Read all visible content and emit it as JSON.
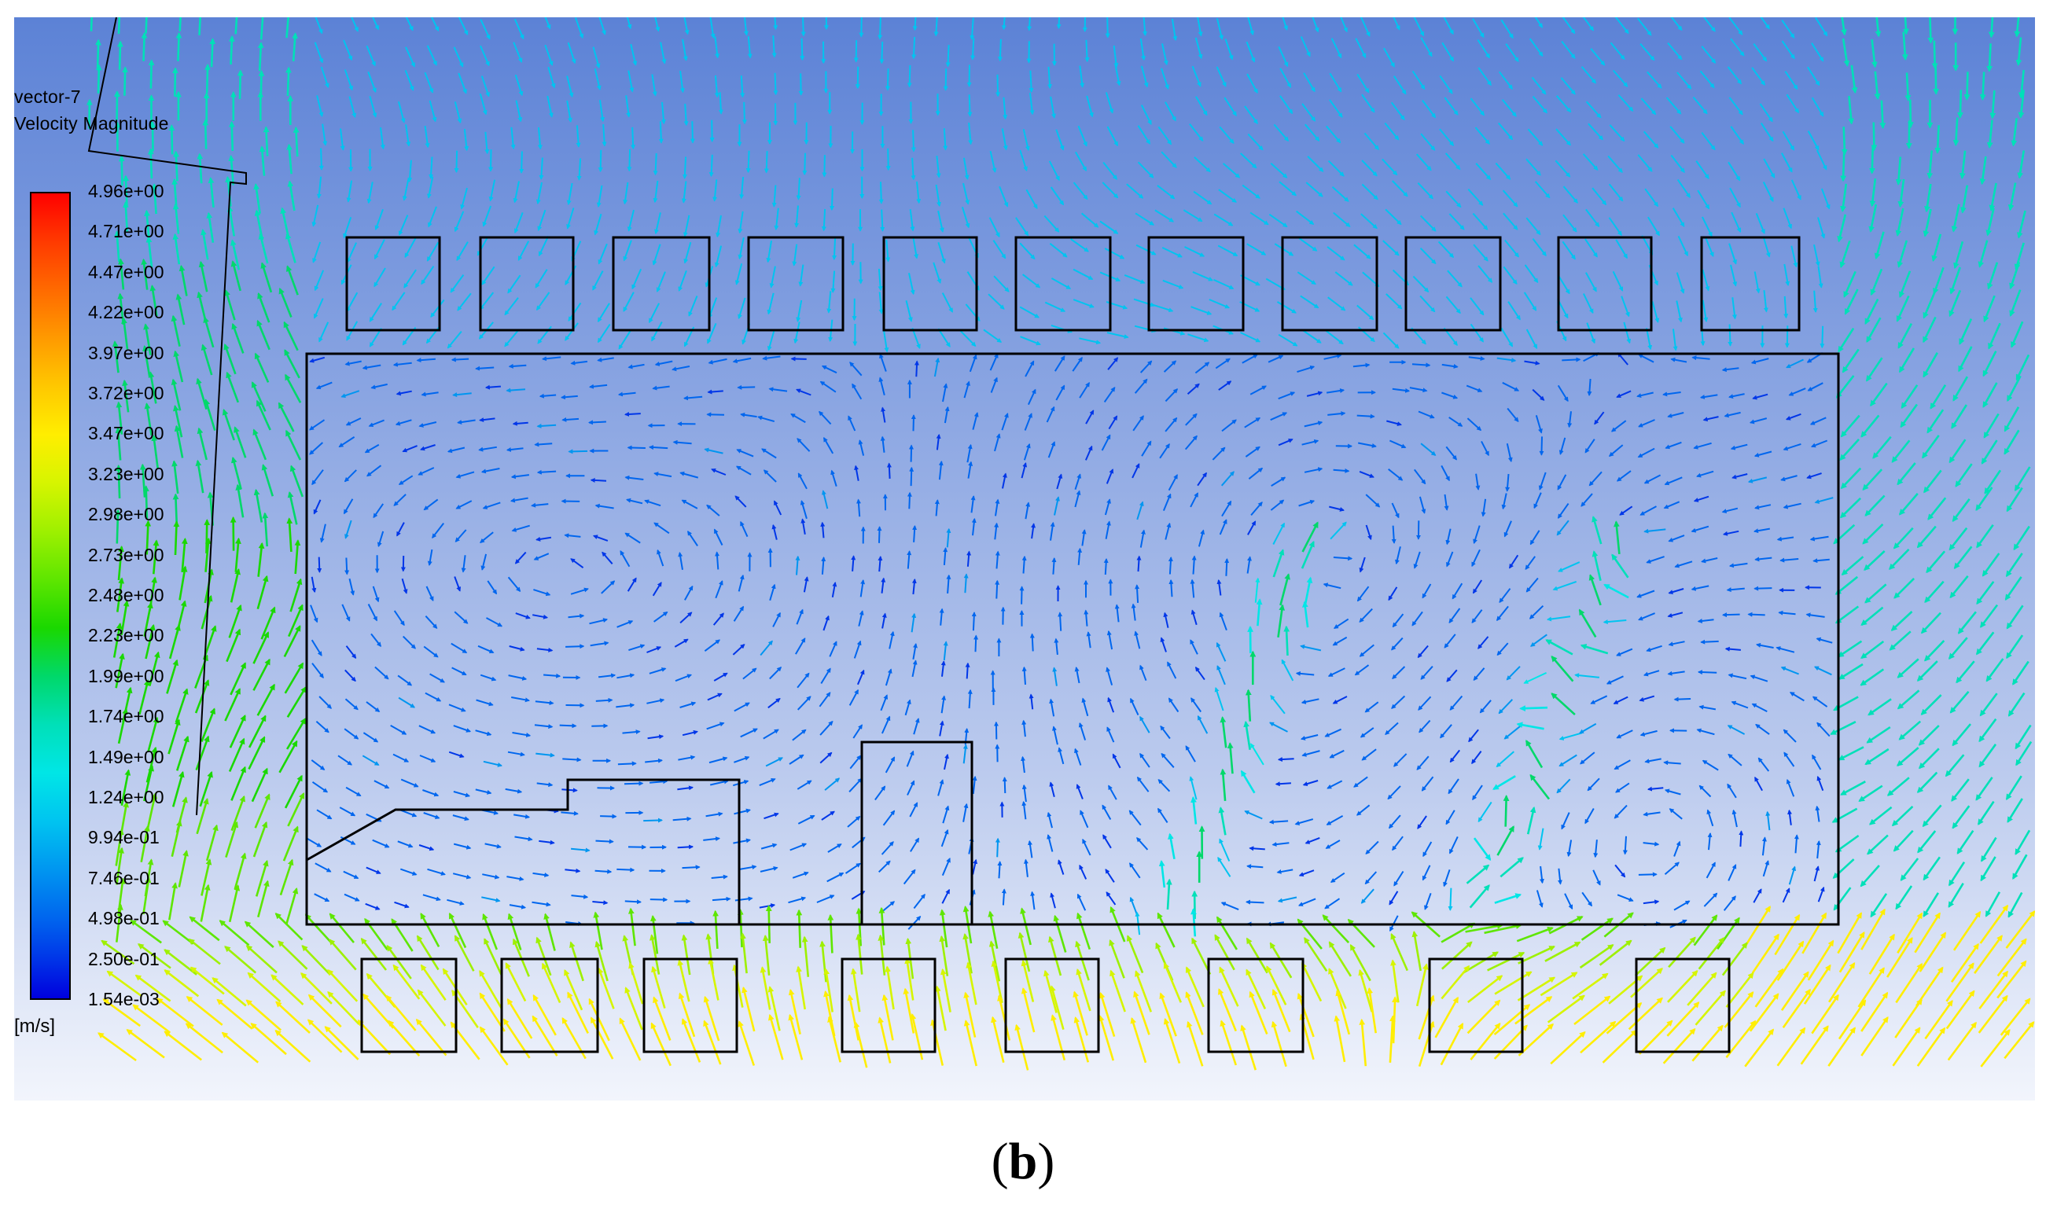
{
  "legend": {
    "object_name": "vector-7",
    "variable": "Velocity Magnitude",
    "units": "[m/s]",
    "ticks": [
      "4.96e+00",
      "4.71e+00",
      "4.47e+00",
      "4.22e+00",
      "3.97e+00",
      "3.72e+00",
      "3.47e+00",
      "3.23e+00",
      "2.98e+00",
      "2.73e+00",
      "2.48e+00",
      "2.23e+00",
      "1.99e+00",
      "1.74e+00",
      "1.49e+00",
      "1.24e+00",
      "9.94e-01",
      "7.46e-01",
      "4.98e-01",
      "2.50e-01",
      "1.54e-03"
    ],
    "colormap": [
      "#0000dd",
      "#0036e8",
      "#0066ee",
      "#0096f0",
      "#00c4f0",
      "#00e6e6",
      "#00e0b8",
      "#00d86a",
      "#1ad800",
      "#5ee600",
      "#9ef000",
      "#d6f500",
      "#ffee00",
      "#ffc800",
      "#ff9a00",
      "#ff6a00",
      "#ff0000"
    ]
  },
  "caption": {
    "open": "(",
    "letter": "b",
    "close": ")"
  },
  "colors": {
    "background_top": "#5c82d6",
    "background_bottom": "#f2f5fc",
    "outline": "#000000"
  }
}
